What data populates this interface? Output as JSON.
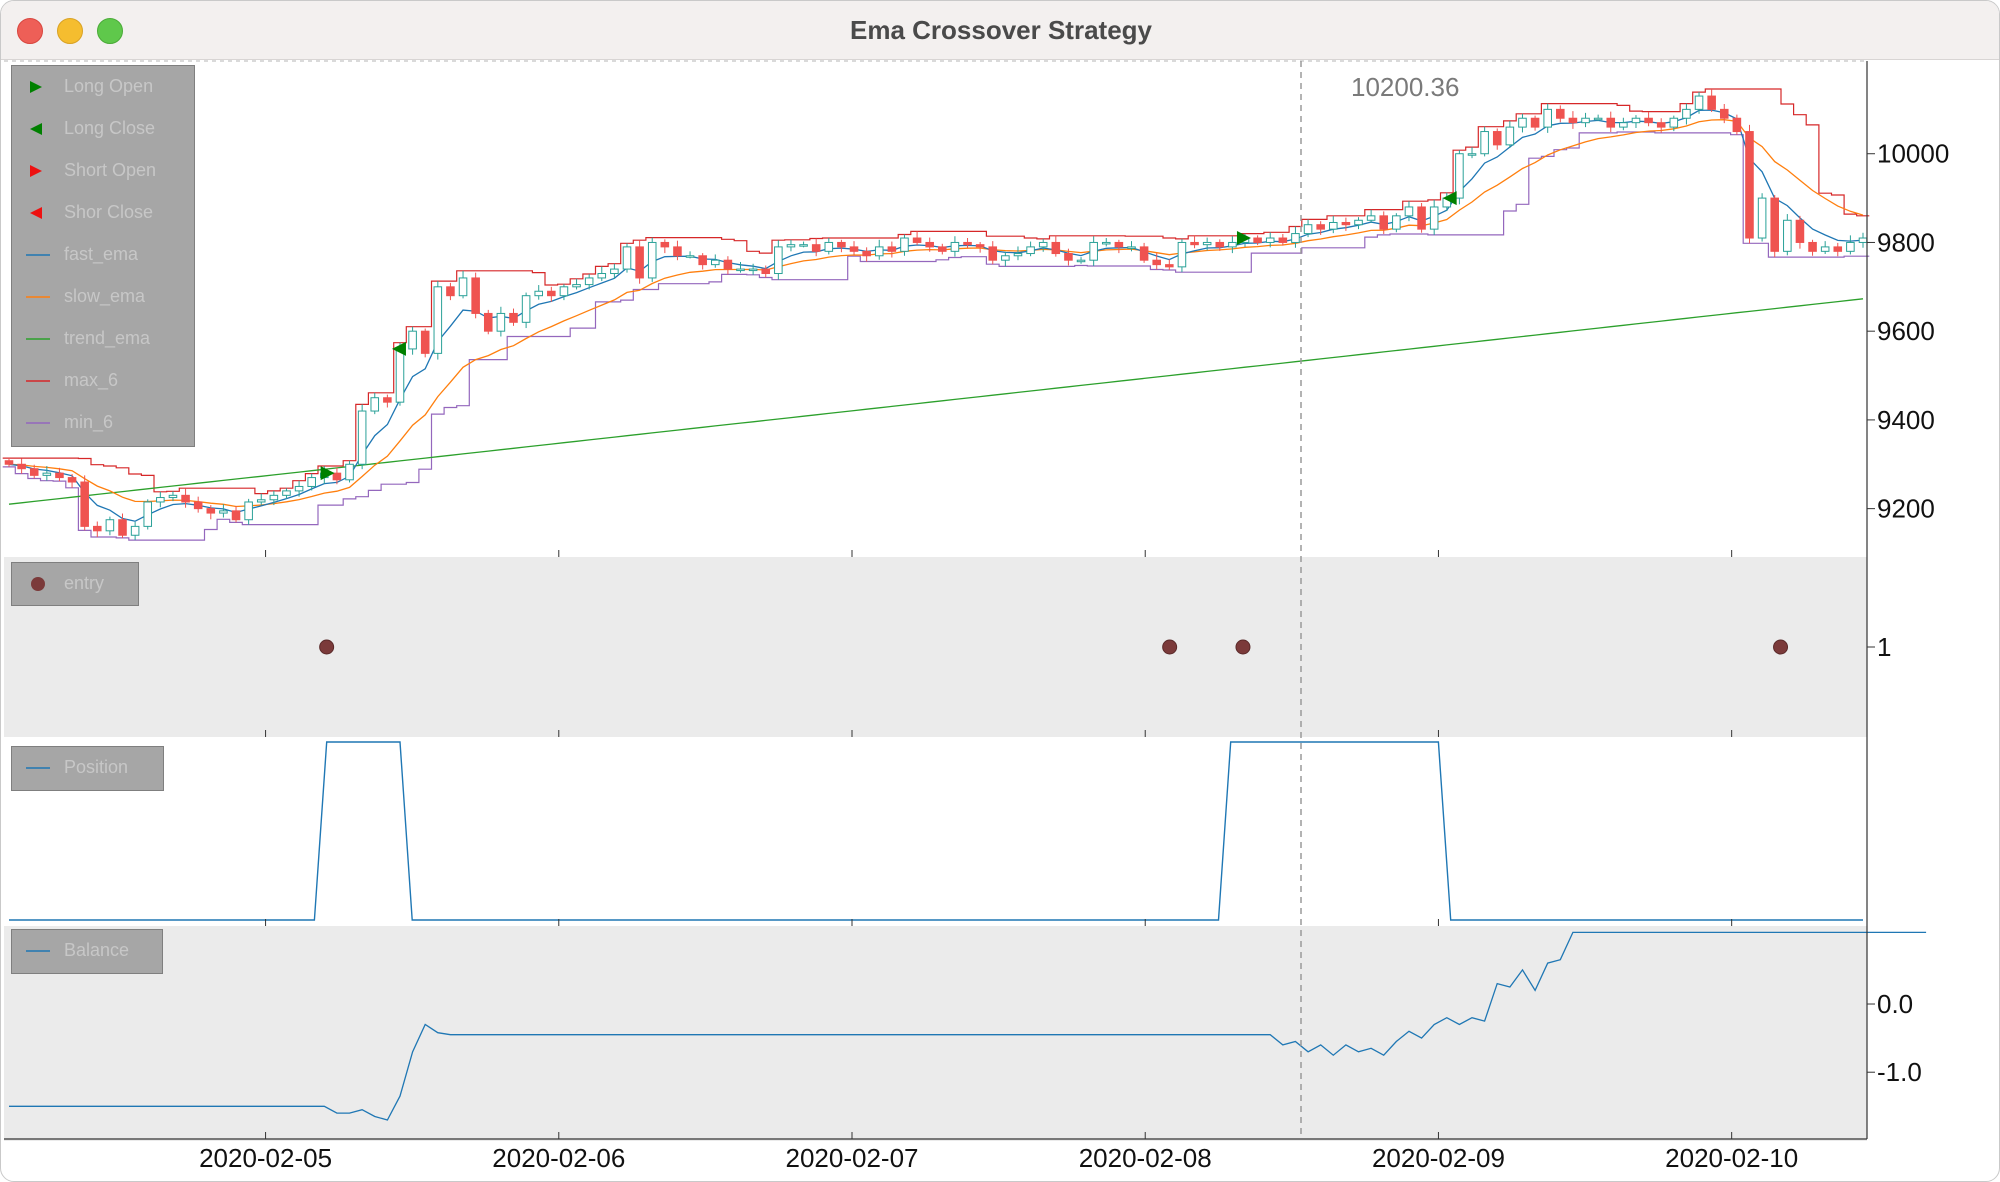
{
  "window": {
    "title": "Ema Crossover Strategy"
  },
  "crosshair": {
    "value_label": "10200.36"
  },
  "colors": {
    "up": "#2aa198",
    "down": "#ef5350",
    "fast_ema": "#1f77b4",
    "slow_ema": "#ff7f0e",
    "trend_ema": "#2ca02c",
    "max_6": "#d62728",
    "min_6": "#9467bd",
    "entry": "#7b3a3a",
    "position": "#1f77b4",
    "balance": "#1f77b4",
    "panel_gray": "#ebebeb"
  },
  "legend_price": [
    {
      "label": "Long Open",
      "icon": "triangle-right-green-icon"
    },
    {
      "label": "Long Close",
      "icon": "triangle-left-green-icon"
    },
    {
      "label": "Short Open",
      "icon": "triangle-right-red-icon"
    },
    {
      "label": "Shor Close",
      "icon": "triangle-left-red-icon"
    },
    {
      "label": "fast_ema",
      "icon": "line-blue-icon"
    },
    {
      "label": "slow_ema",
      "icon": "line-orange-icon"
    },
    {
      "label": "trend_ema",
      "icon": "line-green-icon"
    },
    {
      "label": "max_6",
      "icon": "line-red-icon"
    },
    {
      "label": "min_6",
      "icon": "line-purple-icon"
    }
  ],
  "legend_entry": {
    "label": "entry",
    "icon": "dot-maroon-icon"
  },
  "legend_position": {
    "label": "Position",
    "icon": "line-blue-icon"
  },
  "legend_balance": {
    "label": "Balance",
    "icon": "line-blue-icon"
  },
  "chart_data": [
    {
      "type": "candlestick",
      "title": "",
      "ylim": [
        9100,
        10200
      ],
      "yticks": [
        9200,
        9400,
        9600,
        9800,
        10000
      ],
      "x_start": "2020-02-04T03:00",
      "x_end": "2020-02-10T10:45",
      "interval_hours": 1,
      "close": [
        9300,
        9290,
        9275,
        9280,
        9270,
        9260,
        9160,
        9150,
        9175,
        9140,
        9160,
        9215,
        9225,
        9230,
        9215,
        9200,
        9190,
        9195,
        9175,
        9215,
        9220,
        9230,
        9240,
        9250,
        9270,
        9280,
        9265,
        9300,
        9420,
        9450,
        9440,
        9560,
        9600,
        9550,
        9700,
        9680,
        9720,
        9640,
        9600,
        9640,
        9620,
        9680,
        9690,
        9680,
        9700,
        9705,
        9720,
        9730,
        9740,
        9790,
        9720,
        9800,
        9790,
        9770,
        9770,
        9750,
        9760,
        9740,
        9740,
        9740,
        9730,
        9790,
        9795,
        9795,
        9780,
        9800,
        9790,
        9780,
        9770,
        9790,
        9780,
        9810,
        9800,
        9790,
        9780,
        9800,
        9795,
        9790,
        9760,
        9770,
        9775,
        9790,
        9800,
        9775,
        9760,
        9760,
        9800,
        9800,
        9790,
        9790,
        9760,
        9750,
        9745,
        9800,
        9795,
        9800,
        9790,
        9800,
        9810,
        9800,
        9810,
        9800,
        9820,
        9840,
        9830,
        9845,
        9840,
        9850,
        9860,
        9830,
        9860,
        9880,
        9830,
        9880,
        9900,
        10000,
        10000,
        10050,
        10020,
        10060,
        10080,
        10060,
        10100,
        10080,
        10070,
        10080,
        10080,
        10060,
        10070,
        10080,
        10070,
        10060,
        10080,
        10100,
        10130,
        10100,
        10080,
        10050,
        9810,
        9900,
        9780,
        9850,
        9800,
        9780,
        9790,
        9780,
        9800,
        9810
      ]
    },
    {
      "type": "scatter",
      "series_name": "entry",
      "values_at": [
        "2020-02-05 05:00",
        "2020-02-08 02:00",
        "2020-02-08 08:00",
        "2020-02-10 04:00"
      ],
      "y": 1,
      "ytick": 1
    },
    {
      "type": "line",
      "series_name": "Position",
      "segments": [
        {
          "from": "2020-02-04T03:00",
          "to": "2020-02-05T04:00",
          "value": 0
        },
        {
          "from": "2020-02-05T05:00",
          "to": "2020-02-05T11:00",
          "value": 1
        },
        {
          "from": "2020-02-05T12:00",
          "to": "2020-02-08T06:00",
          "value": 0
        },
        {
          "from": "2020-02-08T07:00",
          "to": "2020-02-09T00:00",
          "value": 1
        },
        {
          "from": "2020-02-09T01:00",
          "to": "2020-02-10T10:45",
          "value": 0
        }
      ]
    },
    {
      "type": "line",
      "series_name": "Balance",
      "ylim": [
        -1.95,
        1.1
      ],
      "yticks": [
        0.0,
        -1.0
      ],
      "ytick_labels": [
        "0.0",
        "-1.0"
      ],
      "points": [
        [
          0,
          -1.5
        ],
        [
          25,
          -1.5
        ],
        [
          26,
          -1.6
        ],
        [
          27,
          -1.6
        ],
        [
          28,
          -1.55
        ],
        [
          29,
          -1.65
        ],
        [
          30,
          -1.7
        ],
        [
          31,
          -1.35
        ],
        [
          32,
          -0.7
        ],
        [
          33,
          -0.3
        ],
        [
          34,
          -0.42
        ],
        [
          35,
          -0.45
        ],
        [
          100,
          -0.45
        ],
        [
          101,
          -0.6
        ],
        [
          102,
          -0.55
        ],
        [
          103,
          -0.7
        ],
        [
          104,
          -0.6
        ],
        [
          105,
          -0.75
        ],
        [
          106,
          -0.6
        ],
        [
          107,
          -0.7
        ],
        [
          108,
          -0.65
        ],
        [
          109,
          -0.75
        ],
        [
          110,
          -0.55
        ],
        [
          111,
          -0.4
        ],
        [
          112,
          -0.5
        ],
        [
          113,
          -0.3
        ],
        [
          114,
          -0.2
        ],
        [
          115,
          -0.3
        ],
        [
          116,
          -0.2
        ],
        [
          117,
          -0.25
        ],
        [
          118,
          0.3
        ],
        [
          119,
          0.25
        ],
        [
          120,
          0.5
        ],
        [
          121,
          0.2
        ],
        [
          122,
          0.6
        ],
        [
          123,
          0.65
        ],
        [
          124,
          1.05
        ],
        [
          126,
          1.05
        ],
        [
          152,
          1.05
        ]
      ]
    }
  ],
  "x_axis": {
    "ticks": [
      "2020-02-05",
      "2020-02-06",
      "2020-02-07",
      "2020-02-08",
      "2020-02-09",
      "2020-02-10"
    ]
  }
}
